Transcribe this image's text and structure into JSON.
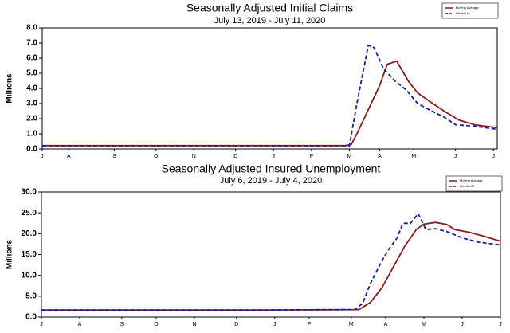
{
  "chart_data": [
    {
      "type": "line",
      "title": "Seasonally Adjusted Initial Claims",
      "subtitle": "July 13, 2019 - July 11, 2020",
      "ylabel": "Millions",
      "xlim": [
        0,
        12
      ],
      "xticks": [
        {
          "value": 0,
          "label": "J"
        },
        {
          "value": 0.7,
          "label": "A"
        },
        {
          "value": 1.9,
          "label": "S"
        },
        {
          "value": 3.0,
          "label": "O"
        },
        {
          "value": 4.0,
          "label": "N"
        },
        {
          "value": 5.1,
          "label": "D"
        },
        {
          "value": 6.1,
          "label": "J"
        },
        {
          "value": 7.1,
          "label": "F"
        },
        {
          "value": 8.1,
          "label": "M"
        },
        {
          "value": 8.9,
          "label": "A"
        },
        {
          "value": 9.8,
          "label": "M"
        },
        {
          "value": 10.9,
          "label": "J"
        },
        {
          "value": 11.9,
          "label": "J"
        }
      ],
      "ylim": [
        0,
        8
      ],
      "yticks": [
        {
          "value": 0,
          "label": "0.0"
        },
        {
          "value": 1,
          "label": "1.0"
        },
        {
          "value": 2,
          "label": "2.0"
        },
        {
          "value": 3,
          "label": "3.0"
        },
        {
          "value": 4,
          "label": "4.0"
        },
        {
          "value": 5,
          "label": "5.0"
        },
        {
          "value": 6,
          "label": "6.0"
        },
        {
          "value": 7,
          "label": "7.0"
        },
        {
          "value": 8,
          "label": "8.0"
        }
      ],
      "series": [
        {
          "name": "Moving Average",
          "color": "#8b1a1a",
          "style": "solid",
          "x": [
            0,
            2,
            4,
            6,
            8.0,
            8.15,
            8.3,
            8.6,
            8.9,
            9.1,
            9.35,
            9.65,
            9.9,
            10.3,
            10.6,
            11.0,
            11.4,
            12
          ],
          "values": [
            0.22,
            0.22,
            0.22,
            0.22,
            0.22,
            0.3,
            1.0,
            2.6,
            4.2,
            5.6,
            5.8,
            4.5,
            3.7,
            3.0,
            2.5,
            1.9,
            1.6,
            1.4
          ]
        },
        {
          "name": "Weekly In",
          "color": "#1c1c9c",
          "style": "dashed",
          "x": [
            0,
            2,
            4,
            6,
            8.1,
            8.3,
            8.6,
            8.75,
            9.0,
            9.3,
            9.6,
            9.9,
            10.2,
            10.6,
            10.9,
            11.4,
            12
          ],
          "values": [
            0.21,
            0.21,
            0.21,
            0.21,
            0.21,
            3.0,
            6.85,
            6.7,
            5.3,
            4.5,
            3.9,
            3.0,
            2.6,
            2.1,
            1.6,
            1.5,
            1.3
          ]
        }
      ]
    },
    {
      "type": "line",
      "title": "Seasonally Adjusted Insured Unemployment",
      "subtitle": "July 6, 2019 - July 4, 2020",
      "ylabel": "Millions",
      "xlim": [
        0,
        12
      ],
      "xticks": [
        {
          "value": 0,
          "label": "J"
        },
        {
          "value": 1.0,
          "label": "A"
        },
        {
          "value": 2.1,
          "label": "S"
        },
        {
          "value": 3.0,
          "label": "O"
        },
        {
          "value": 4.0,
          "label": "N"
        },
        {
          "value": 5.1,
          "label": "D"
        },
        {
          "value": 6.1,
          "label": "J"
        },
        {
          "value": 7.0,
          "label": "F"
        },
        {
          "value": 8.1,
          "label": "M"
        },
        {
          "value": 9.0,
          "label": "A"
        },
        {
          "value": 10.0,
          "label": "M"
        },
        {
          "value": 11.0,
          "label": "J"
        },
        {
          "value": 12.0,
          "label": "J"
        }
      ],
      "ylim": [
        0,
        30
      ],
      "yticks": [
        {
          "value": 0,
          "label": "0.0"
        },
        {
          "value": 5,
          "label": "5.0"
        },
        {
          "value": 10,
          "label": "10.0"
        },
        {
          "value": 15,
          "label": "15.0"
        },
        {
          "value": 20,
          "label": "20.0"
        },
        {
          "value": 25,
          "label": "25.0"
        },
        {
          "value": 30,
          "label": "30.0"
        }
      ],
      "series": [
        {
          "name": "Moving Average",
          "color": "#8b1a1a",
          "style": "solid",
          "x": [
            0,
            2,
            4,
            6,
            8.3,
            8.6,
            8.9,
            9.2,
            9.5,
            9.8,
            10.0,
            10.3,
            10.6,
            10.8,
            11.2,
            11.6,
            12
          ],
          "values": [
            1.7,
            1.7,
            1.7,
            1.7,
            1.8,
            3.5,
            7,
            12,
            17,
            21,
            22.3,
            22.7,
            22.2,
            21,
            20.3,
            19.3,
            18.2
          ]
        },
        {
          "name": "Weekly IU",
          "color": "#1c1c9c",
          "style": "dashed",
          "x": [
            0,
            2,
            4,
            6,
            8.2,
            8.4,
            8.6,
            8.9,
            9.1,
            9.3,
            9.45,
            9.65,
            9.85,
            10.05,
            10.3,
            10.6,
            11.0,
            11.4,
            12
          ],
          "values": [
            1.7,
            1.7,
            1.7,
            1.7,
            1.8,
            3.3,
            8,
            13.5,
            16.5,
            19,
            22.5,
            22.5,
            24.8,
            21,
            21.2,
            20.5,
            19,
            18,
            17.3
          ]
        }
      ]
    }
  ]
}
